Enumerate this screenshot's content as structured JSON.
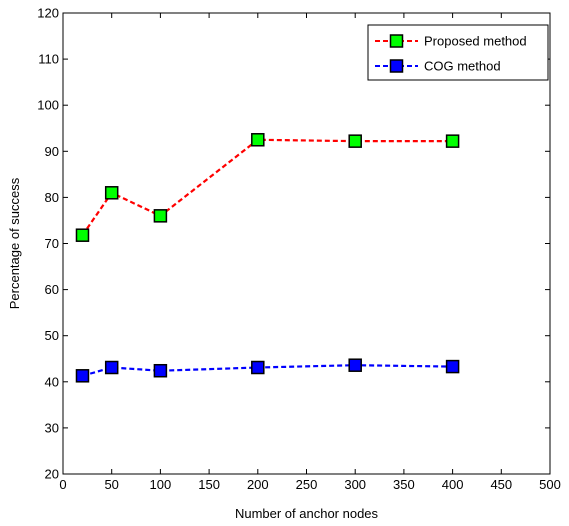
{
  "chart_data": {
    "type": "line",
    "title": "",
    "xlabel": "Number of anchor nodes",
    "ylabel": "Percentage of success",
    "xlim": [
      0,
      500
    ],
    "ylim": [
      20,
      120
    ],
    "xticks": [
      0,
      50,
      100,
      150,
      200,
      250,
      300,
      350,
      400,
      450,
      500
    ],
    "yticks": [
      20,
      30,
      40,
      50,
      60,
      70,
      80,
      90,
      100,
      110,
      120
    ],
    "grid": false,
    "legend_position": "top-right",
    "series": [
      {
        "name": "Proposed method",
        "x": [
          20,
          50,
          100,
          200,
          300,
          400
        ],
        "y": [
          71.8,
          81,
          76,
          92.5,
          92.2,
          92.2
        ],
        "line_color": "#ff0000",
        "marker_color": "#00ff00",
        "line_style": "dashed",
        "marker": "square"
      },
      {
        "name": "COG method",
        "x": [
          20,
          50,
          100,
          200,
          300,
          400
        ],
        "y": [
          41.3,
          43.1,
          42.4,
          43.1,
          43.6,
          43.3
        ],
        "line_color": "#0000ff",
        "marker_color": "#0000ff",
        "line_style": "dashed",
        "marker": "square"
      }
    ]
  }
}
